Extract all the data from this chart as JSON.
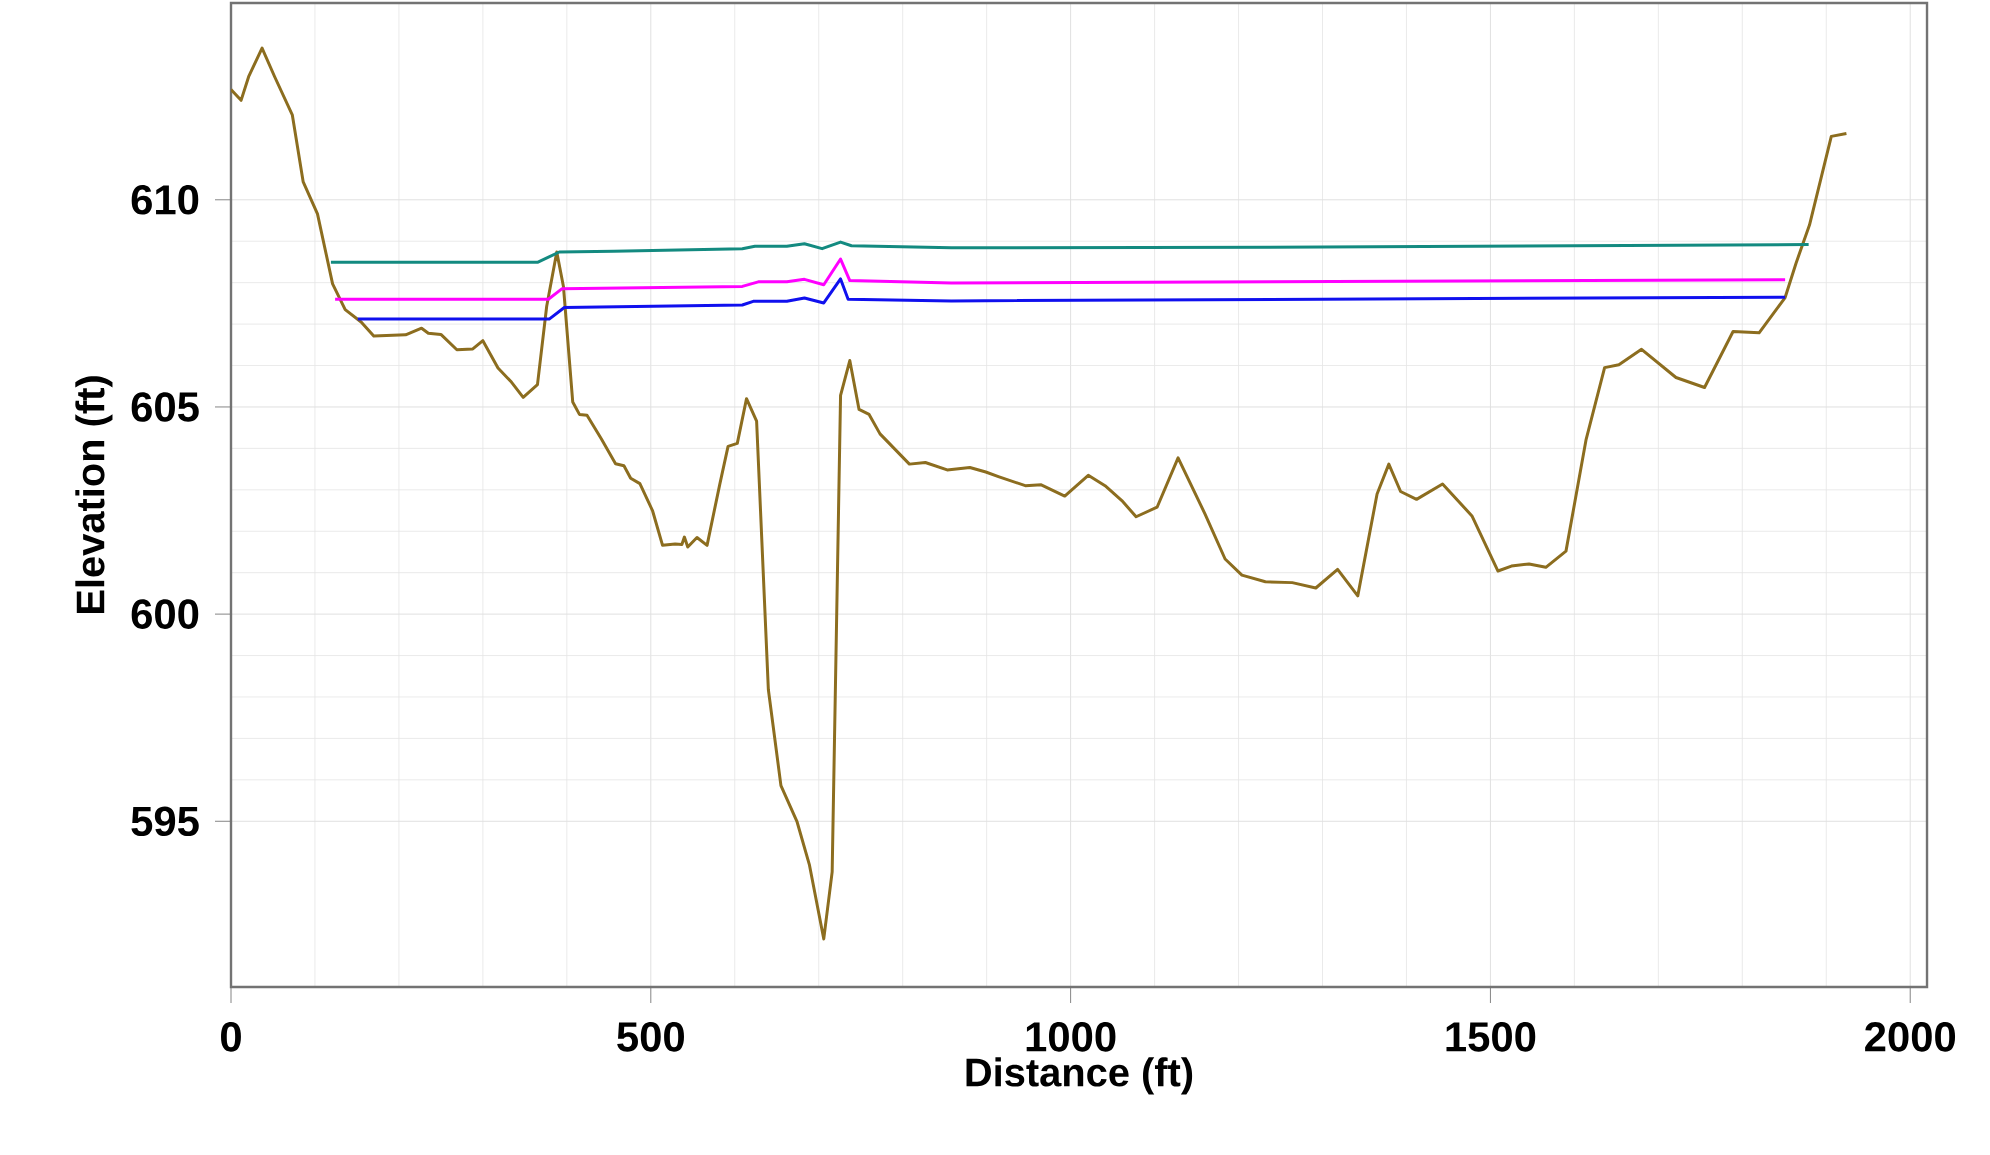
{
  "chart_data": {
    "type": "line",
    "xlabel": "Distance (ft)",
    "ylabel": "Elevation (ft)",
    "xlim": [
      0,
      2020
    ],
    "ylim": [
      591,
      614.75
    ],
    "xticks": [
      0,
      500,
      1000,
      1500,
      2000
    ],
    "yticks": [
      595,
      600,
      605,
      610
    ],
    "grid": true,
    "legend": false,
    "marker": "none",
    "line_style": "solid",
    "series": [
      {
        "color": "#8c6d1f",
        "x": [
          0,
          12,
          21,
          37,
          52,
          73,
          86,
          103,
          121,
          136,
          155,
          170,
          208,
          227,
          235,
          250,
          269,
          288,
          300,
          318,
          334,
          348,
          365,
          376,
          388,
          396,
          407,
          415,
          424,
          441,
          458,
          468,
          476,
          487,
          502,
          514,
          529,
          537,
          540,
          544,
          555,
          567,
          582,
          592,
          603,
          614,
          626,
          640,
          655,
          674,
          689,
          706,
          716,
          726,
          737,
          748,
          760,
          773,
          808,
          827,
          853,
          880,
          899,
          914,
          946,
          965,
          993,
          1021,
          1041,
          1061,
          1078,
          1103,
          1128,
          1160,
          1184,
          1204,
          1232,
          1264,
          1292,
          1318,
          1342,
          1365,
          1379,
          1393,
          1412,
          1443,
          1478,
          1509,
          1525,
          1546,
          1566,
          1590,
          1614,
          1636,
          1653,
          1680,
          1721,
          1755,
          1789,
          1820,
          1851,
          1864,
          1880,
          1906,
          1924
        ],
        "values": [
          612.66,
          612.4,
          612.97,
          613.66,
          612.97,
          612.05,
          610.43,
          609.66,
          607.97,
          607.35,
          607.05,
          606.71,
          606.74,
          606.9,
          606.78,
          606.75,
          606.38,
          606.4,
          606.6,
          605.94,
          605.6,
          605.23,
          605.54,
          607.43,
          608.74,
          607.9,
          605.12,
          604.82,
          604.8,
          604.23,
          603.63,
          603.58,
          603.28,
          603.15,
          602.5,
          601.66,
          601.69,
          601.68,
          601.86,
          601.62,
          601.85,
          601.66,
          603.12,
          604.05,
          604.12,
          605.2,
          604.66,
          598.18,
          595.86,
          595.0,
          593.94,
          592.16,
          593.78,
          605.28,
          606.12,
          604.94,
          604.82,
          604.35,
          603.62,
          603.66,
          603.48,
          603.54,
          603.43,
          603.32,
          603.1,
          603.12,
          602.85,
          603.35,
          603.1,
          602.74,
          602.35,
          602.58,
          603.77,
          602.42,
          601.33,
          600.94,
          600.78,
          600.76,
          600.63,
          601.08,
          600.44,
          602.9,
          603.62,
          602.96,
          602.77,
          603.14,
          602.37,
          601.04,
          601.16,
          601.21,
          601.13,
          601.52,
          604.22,
          605.95,
          606.02,
          606.39,
          605.71,
          605.47,
          606.82,
          606.79,
          607.64,
          608.47,
          609.39,
          611.53,
          611.6
        ]
      },
      {
        "color": "#138a80",
        "x": [
          119,
          365,
          391,
          456,
          609,
          624,
          662,
          683,
          704,
          726,
          739,
          858,
          1300,
          1879
        ],
        "values": [
          608.49,
          608.49,
          608.74,
          608.76,
          608.82,
          608.88,
          608.88,
          608.94,
          608.82,
          608.98,
          608.89,
          608.84,
          608.86,
          608.92
        ]
      },
      {
        "color": "#ff00ff",
        "x": [
          124,
          378,
          394,
          609,
          628,
          662,
          683,
          706,
          726,
          737,
          858,
          1851
        ],
        "values": [
          607.6,
          607.6,
          607.85,
          607.91,
          608.02,
          608.02,
          608.08,
          607.95,
          608.57,
          608.05,
          607.99,
          608.07
        ]
      },
      {
        "color": "#1010ee",
        "x": [
          151,
          379,
          397,
          609,
          622,
          662,
          683,
          706,
          726,
          735,
          858,
          1851
        ],
        "values": [
          607.12,
          607.12,
          607.4,
          607.46,
          607.55,
          607.55,
          607.63,
          607.51,
          608.09,
          607.6,
          607.56,
          607.65
        ]
      }
    ]
  }
}
